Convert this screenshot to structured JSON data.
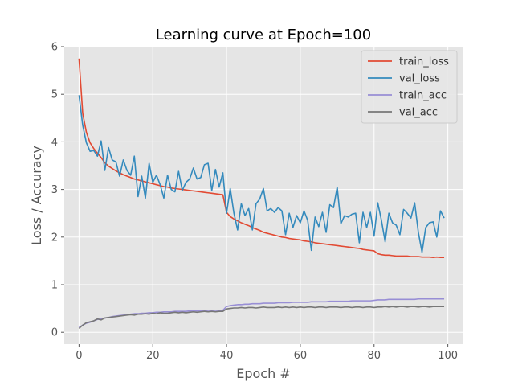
{
  "chart_data": {
    "type": "line",
    "title": "Learning curve at Epoch=100",
    "xlabel": "Epoch #",
    "ylabel": "Loss / Accuracy",
    "xlim": [
      -4,
      104
    ],
    "ylim": [
      -0.25,
      6
    ],
    "xticks": [
      0,
      20,
      40,
      60,
      80,
      100
    ],
    "yticks": [
      0,
      1,
      2,
      3,
      4,
      5,
      6
    ],
    "grid": true,
    "legend_position": "upper right",
    "series": [
      {
        "name": "train_loss",
        "color": "#E24A33",
        "values": [
          5.75,
          4.6,
          4.2,
          3.98,
          3.86,
          3.76,
          3.67,
          3.56,
          3.49,
          3.44,
          3.39,
          3.35,
          3.31,
          3.28,
          3.25,
          3.22,
          3.2,
          3.18,
          3.16,
          3.14,
          3.12,
          3.1,
          3.08,
          3.06,
          3.05,
          3.03,
          3.02,
          3.01,
          3.0,
          2.99,
          2.98,
          2.97,
          2.96,
          2.95,
          2.94,
          2.93,
          2.92,
          2.91,
          2.9,
          2.89,
          2.52,
          2.43,
          2.38,
          2.34,
          2.3,
          2.27,
          2.24,
          2.2,
          2.17,
          2.14,
          2.1,
          2.08,
          2.06,
          2.04,
          2.02,
          2.0,
          1.99,
          1.97,
          1.96,
          1.95,
          1.94,
          1.92,
          1.91,
          1.9,
          1.88,
          1.87,
          1.86,
          1.85,
          1.84,
          1.83,
          1.82,
          1.81,
          1.8,
          1.79,
          1.78,
          1.77,
          1.76,
          1.74,
          1.73,
          1.72,
          1.71,
          1.65,
          1.63,
          1.62,
          1.62,
          1.61,
          1.6,
          1.6,
          1.6,
          1.6,
          1.59,
          1.59,
          1.59,
          1.58,
          1.58,
          1.58,
          1.57,
          1.58,
          1.57,
          1.57
        ]
      },
      {
        "name": "val_loss",
        "color": "#348ABD",
        "values": [
          4.98,
          4.35,
          3.98,
          3.8,
          3.82,
          3.7,
          4.02,
          3.4,
          3.88,
          3.62,
          3.58,
          3.28,
          3.62,
          3.4,
          3.3,
          3.7,
          2.85,
          3.28,
          2.82,
          3.55,
          3.15,
          3.3,
          3.1,
          2.82,
          3.3,
          3.0,
          2.95,
          3.38,
          2.98,
          3.15,
          3.22,
          3.45,
          3.22,
          3.25,
          3.52,
          3.55,
          2.98,
          3.42,
          3.05,
          3.35,
          2.5,
          3.02,
          2.5,
          2.15,
          2.7,
          2.45,
          2.6,
          2.15,
          2.7,
          2.8,
          3.02,
          2.55,
          2.6,
          2.52,
          2.62,
          2.55,
          2.05,
          2.5,
          2.2,
          2.45,
          2.3,
          2.55,
          2.35,
          1.72,
          2.42,
          2.22,
          2.52,
          2.1,
          2.68,
          2.62,
          3.05,
          2.28,
          2.45,
          2.42,
          2.48,
          2.5,
          1.88,
          2.52,
          2.2,
          2.52,
          2.02,
          2.72,
          2.35,
          1.9,
          2.5,
          2.3,
          2.25,
          2.05,
          2.58,
          2.5,
          2.4,
          2.72,
          2.1,
          1.68,
          2.2,
          2.3,
          2.32,
          2.0,
          2.55,
          2.4
        ]
      },
      {
        "name": "train_acc",
        "color": "#988ED5",
        "values": [
          0.1,
          0.15,
          0.19,
          0.21,
          0.24,
          0.27,
          0.28,
          0.3,
          0.31,
          0.33,
          0.34,
          0.35,
          0.36,
          0.37,
          0.38,
          0.39,
          0.39,
          0.4,
          0.4,
          0.41,
          0.41,
          0.42,
          0.42,
          0.43,
          0.43,
          0.43,
          0.44,
          0.44,
          0.44,
          0.44,
          0.45,
          0.45,
          0.45,
          0.45,
          0.45,
          0.46,
          0.46,
          0.46,
          0.46,
          0.46,
          0.54,
          0.56,
          0.57,
          0.58,
          0.58,
          0.59,
          0.59,
          0.6,
          0.6,
          0.6,
          0.61,
          0.61,
          0.61,
          0.61,
          0.62,
          0.62,
          0.62,
          0.62,
          0.63,
          0.63,
          0.63,
          0.63,
          0.63,
          0.64,
          0.64,
          0.64,
          0.64,
          0.64,
          0.65,
          0.65,
          0.65,
          0.65,
          0.65,
          0.65,
          0.66,
          0.66,
          0.66,
          0.66,
          0.66,
          0.66,
          0.67,
          0.68,
          0.68,
          0.68,
          0.69,
          0.69,
          0.69,
          0.69,
          0.69,
          0.69,
          0.69,
          0.69,
          0.7,
          0.7,
          0.7,
          0.7,
          0.7,
          0.7,
          0.7,
          0.7
        ]
      },
      {
        "name": "val_acc",
        "color": "#777777",
        "values": [
          0.08,
          0.15,
          0.2,
          0.22,
          0.24,
          0.28,
          0.26,
          0.3,
          0.31,
          0.32,
          0.33,
          0.34,
          0.35,
          0.36,
          0.37,
          0.36,
          0.38,
          0.38,
          0.39,
          0.38,
          0.4,
          0.39,
          0.41,
          0.4,
          0.4,
          0.41,
          0.42,
          0.41,
          0.42,
          0.41,
          0.42,
          0.43,
          0.42,
          0.43,
          0.44,
          0.43,
          0.44,
          0.43,
          0.44,
          0.44,
          0.49,
          0.5,
          0.51,
          0.51,
          0.52,
          0.51,
          0.52,
          0.52,
          0.51,
          0.52,
          0.53,
          0.52,
          0.52,
          0.52,
          0.53,
          0.52,
          0.53,
          0.52,
          0.53,
          0.52,
          0.53,
          0.52,
          0.53,
          0.53,
          0.52,
          0.53,
          0.53,
          0.52,
          0.53,
          0.53,
          0.53,
          0.52,
          0.53,
          0.53,
          0.52,
          0.53,
          0.53,
          0.52,
          0.53,
          0.53,
          0.52,
          0.53,
          0.53,
          0.54,
          0.53,
          0.54,
          0.53,
          0.54,
          0.54,
          0.53,
          0.54,
          0.54,
          0.53,
          0.54,
          0.54,
          0.53,
          0.54,
          0.54,
          0.54,
          0.54
        ]
      }
    ]
  }
}
